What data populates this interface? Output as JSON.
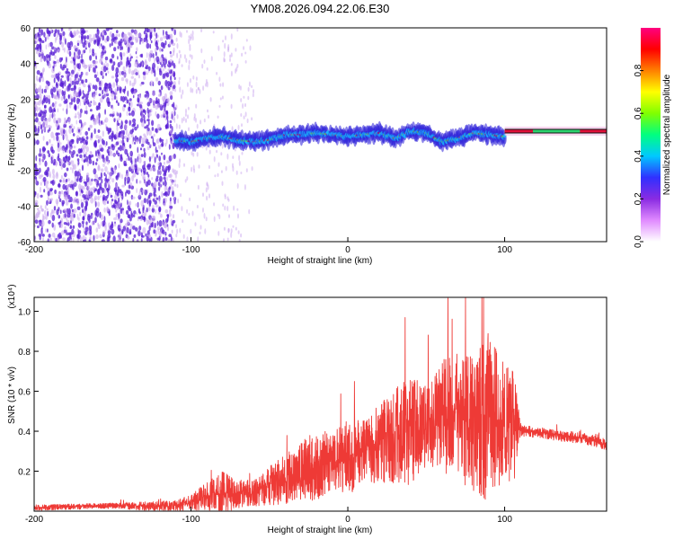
{
  "figure": {
    "title": "YM08.2026.094.22.06.E30"
  },
  "colors": {
    "snr_line": "#ee3a36",
    "frame": "#000000",
    "scatter_dense": "#5a1fd6",
    "scatter_light": "#c9a6ef",
    "ridge_mid": "#19c0ff",
    "ridge_hot": "#e0103a",
    "tail_band": "#f4c4e8"
  },
  "chart_data": [
    {
      "id": "spectrogram",
      "type": "heatmap",
      "xlabel": "Height of straight line (km)",
      "ylabel": "Frequency (Hz)",
      "xlim": [
        -200,
        165
      ],
      "ylim": [
        -60,
        60
      ],
      "xticks": [
        "-200",
        "-100",
        "0",
        "100"
      ],
      "yticks": [
        "60",
        "40",
        "20",
        "0",
        "-20",
        "-40",
        "-60"
      ],
      "colorbar": {
        "label": "Normalized spectral amplitude",
        "range": [
          0.0,
          1.0
        ],
        "ticks": [
          "0.8",
          "0.6",
          "0.4",
          "0.2",
          "0.0"
        ],
        "stops": [
          "#ffffff",
          "#e08aff",
          "#8a2be2",
          "#3030ff",
          "#00c8ff",
          "#00ff80",
          "#80ff00",
          "#ffff00",
          "#ff8000",
          "#ff0000",
          "#ff0080"
        ]
      },
      "ridge": {
        "heights_km": [
          -110,
          -100,
          -90,
          -80,
          -70,
          -60,
          -50,
          -40,
          -30,
          -20,
          -10,
          0,
          10,
          20,
          30,
          40,
          50,
          60,
          70,
          80,
          90,
          100
        ],
        "center_freq_hz": [
          -3,
          -4,
          -2,
          -1,
          -3,
          -4,
          -3,
          0,
          0,
          1,
          0,
          -1,
          0,
          1,
          -2,
          2,
          1,
          -4,
          -2,
          1,
          0,
          -1
        ]
      },
      "tail": {
        "x_range_km": [
          100,
          165
        ],
        "freq_hz": 2
      },
      "noise_region_km": [
        -200,
        -110
      ]
    },
    {
      "id": "snr",
      "type": "line",
      "xlabel": "Height of straight line (km)",
      "ylabel": "SNR (10 * v/v)",
      "y_scale_label": "(x10⁴)",
      "xlim": [
        -200,
        165
      ],
      "ylim": [
        0,
        1.07
      ],
      "xticks": [
        "-200",
        "-100",
        "0",
        "100"
      ],
      "yticks": [
        "1.0",
        "0.8",
        "0.6",
        "0.4",
        "0.2"
      ],
      "series": [
        {
          "name": "SNR",
          "envelope_x_km": [
            -200,
            -150,
            -110,
            -100,
            -90,
            -80,
            -70,
            -60,
            -50,
            -40,
            -30,
            -20,
            -10,
            0,
            10,
            20,
            30,
            40,
            50,
            60,
            70,
            80,
            90,
            100,
            106,
            110,
            130,
            150,
            165
          ],
          "envelope_y": [
            0.02,
            0.03,
            0.03,
            0.05,
            0.09,
            0.11,
            0.1,
            0.1,
            0.15,
            0.18,
            0.23,
            0.27,
            0.28,
            0.31,
            0.32,
            0.38,
            0.43,
            0.47,
            0.45,
            0.53,
            0.55,
            0.5,
            0.56,
            0.5,
            0.48,
            0.41,
            0.39,
            0.37,
            0.34
          ],
          "spike_amplitude": [
            0.01,
            0.01,
            0.02,
            0.03,
            0.05,
            0.08,
            0.05,
            0.05,
            0.07,
            0.09,
            0.1,
            0.13,
            0.1,
            0.13,
            0.12,
            0.14,
            0.17,
            0.2,
            0.14,
            0.2,
            0.22,
            0.25,
            0.3,
            0.22,
            0.2,
            0.02,
            0.02,
            0.02,
            0.02
          ]
        }
      ]
    }
  ]
}
